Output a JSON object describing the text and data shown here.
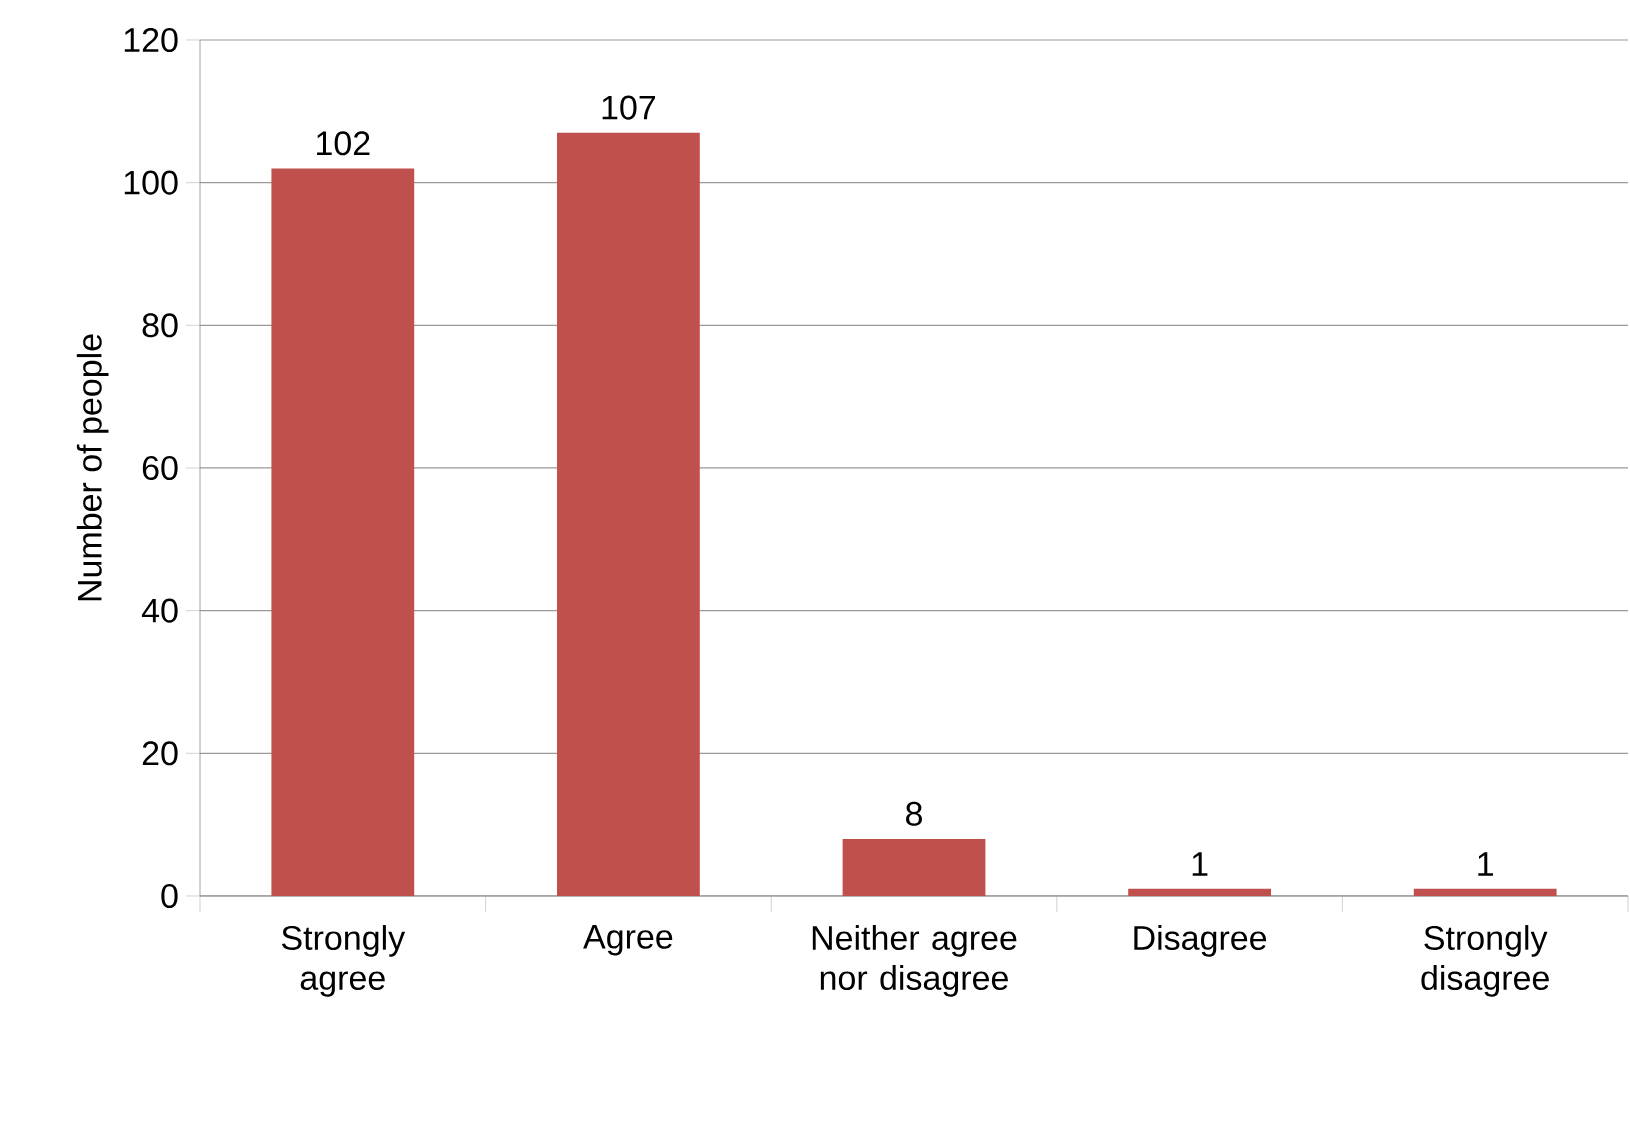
{
  "chart_data": {
    "type": "bar",
    "ylabel": "Number of people",
    "categories": [
      "Strongly agree",
      "Agree",
      "Neither agree nor disagree",
      "Disagree",
      "Strongly disagree"
    ],
    "values": [
      102,
      107,
      8,
      1,
      1
    ],
    "color": "#c0504d",
    "ylim": [
      0,
      120
    ],
    "yticks": [
      0,
      20,
      40,
      60,
      80,
      100,
      120
    ],
    "grid": "y",
    "data_labels": true
  }
}
